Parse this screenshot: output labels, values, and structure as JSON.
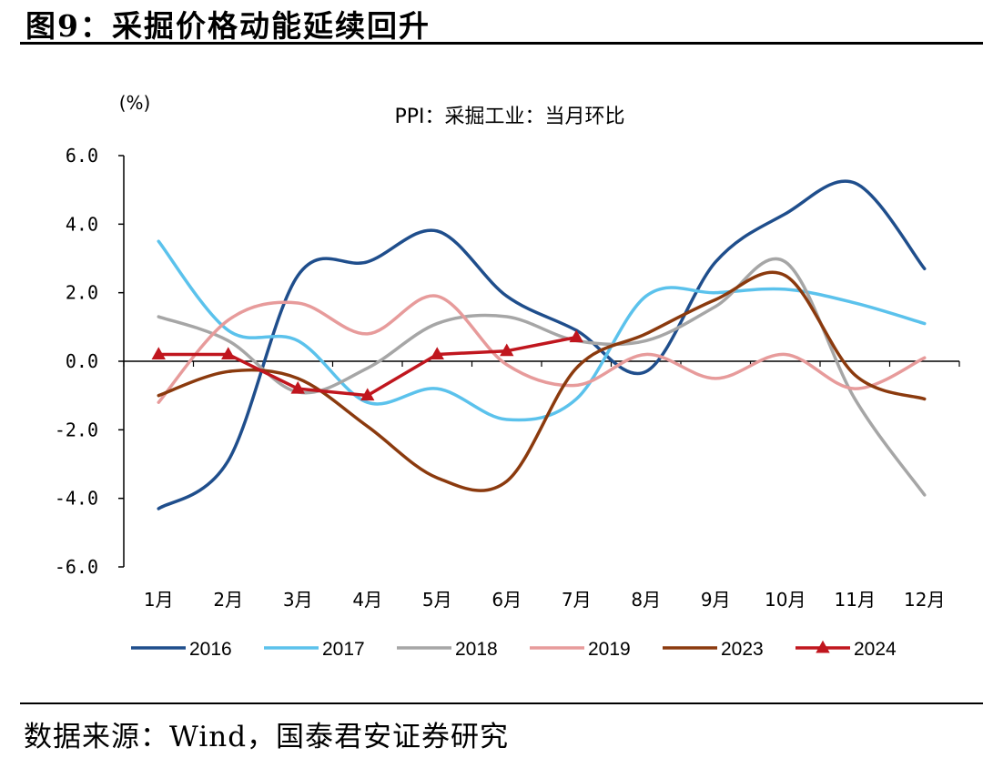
{
  "figure": {
    "title": "图9：采掘价格动能延续回升",
    "source": "数据来源：Wind，国泰君安证券研究"
  },
  "chart_data": {
    "type": "line",
    "title": "PPI：采掘工业：当月环比",
    "ylabel": "(%)",
    "xlabel": "",
    "categories": [
      "1月",
      "2月",
      "3月",
      "4月",
      "5月",
      "6月",
      "7月",
      "8月",
      "9月",
      "10月",
      "11月",
      "12月"
    ],
    "ylim": [
      -6,
      6
    ],
    "yticks": [
      6,
      4,
      2,
      0,
      -2,
      -4,
      -6
    ],
    "ytick_labels": [
      "6.0",
      "4.0",
      "2.0",
      "0.0",
      "-2.0",
      "-4.0",
      "-6.0"
    ],
    "legend_position": "bottom",
    "series": [
      {
        "name": "2016",
        "color": "#1f4e8c",
        "marker": false,
        "values": [
          -4.3,
          -2.9,
          2.5,
          2.9,
          3.8,
          1.9,
          0.9,
          -0.3,
          2.9,
          4.3,
          5.2,
          2.7
        ]
      },
      {
        "name": "2017",
        "color": "#5bc2ec",
        "marker": false,
        "values": [
          3.5,
          0.9,
          0.6,
          -1.2,
          -0.8,
          -1.7,
          -1.1,
          1.9,
          2.0,
          2.1,
          1.7,
          1.1
        ]
      },
      {
        "name": "2018",
        "color": "#a6a6a6",
        "marker": false,
        "values": [
          1.3,
          0.6,
          -0.9,
          -0.2,
          1.1,
          1.3,
          0.6,
          0.6,
          1.6,
          2.9,
          -1.1,
          -3.9
        ]
      },
      {
        "name": "2019",
        "color": "#e79b9b",
        "marker": false,
        "values": [
          -1.2,
          1.2,
          1.7,
          0.8,
          1.9,
          -0.1,
          -0.7,
          0.2,
          -0.5,
          0.2,
          -0.8,
          0.1
        ]
      },
      {
        "name": "2023",
        "color": "#8b3a0e",
        "marker": false,
        "values": [
          -1.0,
          -0.3,
          -0.5,
          -1.9,
          -3.4,
          -3.5,
          -0.2,
          0.8,
          1.8,
          2.5,
          -0.4,
          -1.1
        ]
      },
      {
        "name": "2024",
        "color": "#c0161e",
        "marker": true,
        "values": [
          0.2,
          0.2,
          -0.8,
          -1.0,
          0.2,
          0.3,
          0.7,
          null,
          null,
          null,
          null,
          null
        ]
      }
    ]
  }
}
